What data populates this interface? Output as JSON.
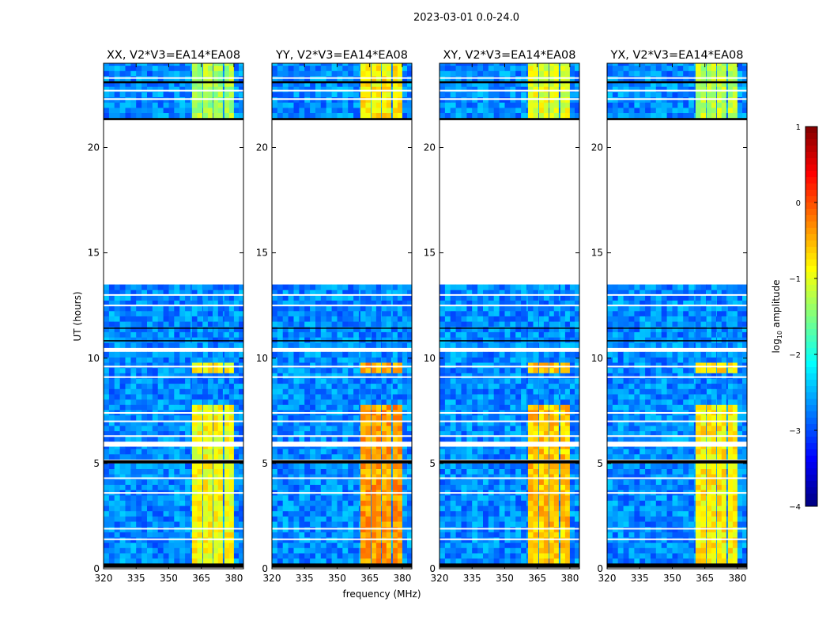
{
  "chart_data": {
    "type": "heatmap",
    "title": "2023-03-01 0.0-24.0",
    "xlabel": "frequency (MHz)",
    "ylabel": "UT (hours)",
    "xlim": [
      320,
      384.4
    ],
    "ylim": [
      0,
      24
    ],
    "xticks": [
      320,
      335,
      350,
      365,
      380
    ],
    "yticks": [
      0,
      5,
      10,
      15,
      20
    ],
    "panels": [
      {
        "title": "XX, V2*V3=EA14*EA08",
        "rfi_strength": -0.9
      },
      {
        "title": "YY, V2*V3=EA14*EA08",
        "rfi_strength": -0.4
      },
      {
        "title": "XY, V2*V3=EA14*EA08",
        "rfi_strength": -0.6
      },
      {
        "title": "YX, V2*V3=EA14*EA08",
        "rfi_strength": -0.8
      }
    ],
    "data_segments_hours": [
      [
        0.25,
        5.0
      ],
      [
        5.2,
        5.8
      ],
      [
        6.05,
        10.3
      ],
      [
        10.5,
        13.5
      ],
      [
        21.4,
        24.0
      ]
    ],
    "black_bands_hours": [
      [
        0.05,
        0.25
      ],
      [
        5.0,
        5.15
      ],
      [
        21.3,
        21.4
      ],
      [
        23.05,
        23.15
      ],
      [
        10.8,
        10.85
      ],
      [
        11.4,
        11.45
      ]
    ],
    "white_lines_hours": [
      1.4,
      1.9,
      3.6,
      4.3,
      6.3,
      7.0,
      7.4,
      9.1,
      9.6,
      12.5,
      13.0,
      22.3,
      22.7,
      23.3
    ],
    "rfi_channels_mhz": [
      [
        360.7,
        365.5
      ],
      [
        365.8,
        370.2
      ],
      [
        370.5,
        374.9
      ],
      [
        375.6,
        380.0
      ]
    ],
    "rfi_active_hours": [
      [
        0.25,
        5.8
      ],
      [
        6.05,
        7.6
      ],
      [
        9.1,
        9.8
      ],
      [
        21.4,
        24.0
      ]
    ],
    "background_level": -2.7,
    "colorbar": {
      "label": "log10 amplitude",
      "label_main": "log",
      "label_sub": "10",
      "label_rest": " amplitude",
      "vmin": -4,
      "vmax": 1,
      "ticks": [
        "1",
        "0",
        "−1",
        "−2",
        "−3",
        "−4"
      ],
      "tick_values": [
        1,
        0,
        -1,
        -2,
        -3,
        -4
      ],
      "colormap": "jet"
    }
  }
}
